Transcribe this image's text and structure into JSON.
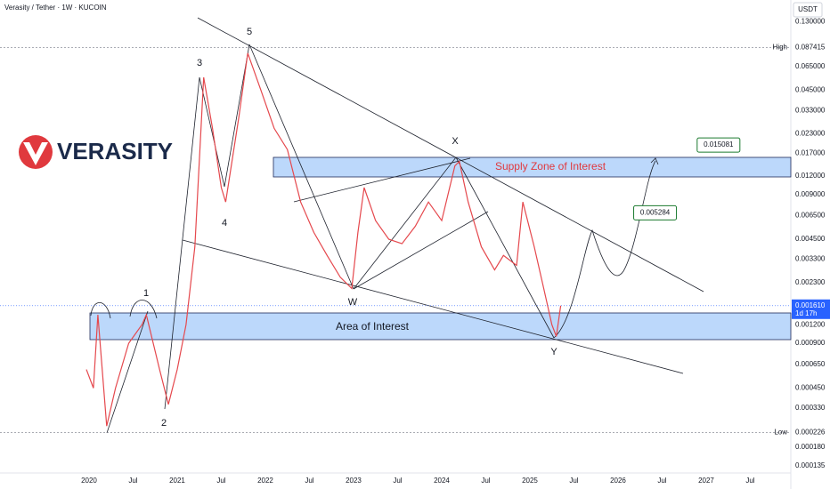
{
  "header": {
    "symbol": "Verasity / Tether · 1W · KUCOIN",
    "currency": "USDT"
  },
  "logo": {
    "text": "VERASITY"
  },
  "chart_data": {
    "type": "line",
    "log_scale": true,
    "color": "#e5484d",
    "x": [
      2019.97,
      2020.05,
      2020.1,
      2020.2,
      2020.3,
      2020.45,
      2020.6,
      2020.65,
      2020.8,
      2020.9,
      2021.0,
      2021.1,
      2021.2,
      2021.3,
      2021.4,
      2021.5,
      2021.55,
      2021.7,
      2021.8,
      2021.95,
      2022.1,
      2022.25,
      2022.4,
      2022.55,
      2022.7,
      2022.85,
      2022.98,
      2023.05,
      2023.12,
      2023.25,
      2023.4,
      2023.55,
      2023.7,
      2023.85,
      2024.0,
      2024.15,
      2024.2,
      2024.3,
      2024.45,
      2024.6,
      2024.7,
      2024.85,
      2024.92,
      2025.05,
      2025.15,
      2025.25,
      2025.3,
      2025.35
    ],
    "values": [
      0.0006,
      0.00045,
      0.0014,
      0.00025,
      0.00045,
      0.0009,
      0.0012,
      0.0014,
      0.0006,
      0.00035,
      0.0006,
      0.0012,
      0.004,
      0.055,
      0.025,
      0.01,
      0.008,
      0.03,
      0.08,
      0.045,
      0.025,
      0.018,
      0.008,
      0.005,
      0.0035,
      0.0025,
      0.0021,
      0.005,
      0.01,
      0.006,
      0.0045,
      0.0042,
      0.0055,
      0.008,
      0.006,
      0.014,
      0.015,
      0.008,
      0.004,
      0.0028,
      0.0035,
      0.003,
      0.008,
      0.004,
      0.0022,
      0.0012,
      0.001,
      0.00161
    ],
    "xlim": [
      2018.99,
      2027.96
    ],
    "xticks": [
      2020,
      {
        "value": 2020.5,
        "label": "Jul"
      },
      2021,
      {
        "value": 2021.5,
        "label": "Jul"
      },
      2022,
      {
        "value": 2022.5,
        "label": "Jul"
      },
      2023,
      {
        "value": 2023.5,
        "label": "Jul"
      },
      2024,
      {
        "value": 2024.5,
        "label": "Jul"
      },
      2025,
      {
        "value": 2025.5,
        "label": "Jul"
      },
      2026,
      {
        "value": 2026.5,
        "label": "Jul"
      },
      2027,
      {
        "value": 2027.5,
        "label": "Jul"
      }
    ],
    "ylim": [
      0.000121,
      0.182
    ],
    "yticks": [
      {
        "value": 0.13,
        "label": "0.130000"
      },
      {
        "value": 0.065,
        "label": "0.065000"
      },
      {
        "value": 0.045,
        "label": "0.045000"
      },
      {
        "value": 0.033,
        "label": "0.033000"
      },
      {
        "value": 0.023,
        "label": "0.023000"
      },
      {
        "value": 0.017,
        "label": "0.017000"
      },
      {
        "value": 0.012,
        "label": "0.012000"
      },
      {
        "value": 0.009,
        "label": "0.009000"
      },
      {
        "value": 0.0065,
        "label": "0.006500"
      },
      {
        "value": 0.0045,
        "label": "0.004500"
      },
      {
        "value": 0.0033,
        "label": "0.003300"
      },
      {
        "value": 0.0023,
        "label": "0.002300"
      },
      {
        "value": 0.0012,
        "label": "0.001200"
      },
      {
        "value": 0.0009,
        "label": "0.000900"
      },
      {
        "value": 0.00065,
        "label": "0.000650"
      },
      {
        "value": 0.00045,
        "label": "0.000450"
      },
      {
        "value": 0.00033,
        "label": "0.000330"
      },
      {
        "value": 0.00018,
        "label": "0.000180"
      },
      {
        "value": 0.000135,
        "label": "0.000135"
      }
    ],
    "high": {
      "label": "High",
      "value": 0.087415
    },
    "low": {
      "label": "Low",
      "value": 0.000226
    },
    "last_price": {
      "value": 0.00161,
      "label": "0.001610",
      "countdown": "1d 17h"
    },
    "waves": [
      "1",
      "2",
      "3",
      "4",
      "5",
      "W",
      "X",
      "Y"
    ],
    "zones": [
      "Supply Zone of Interest",
      "Area of Interest"
    ],
    "targets": [
      0.005284,
      0.015081
    ]
  }
}
